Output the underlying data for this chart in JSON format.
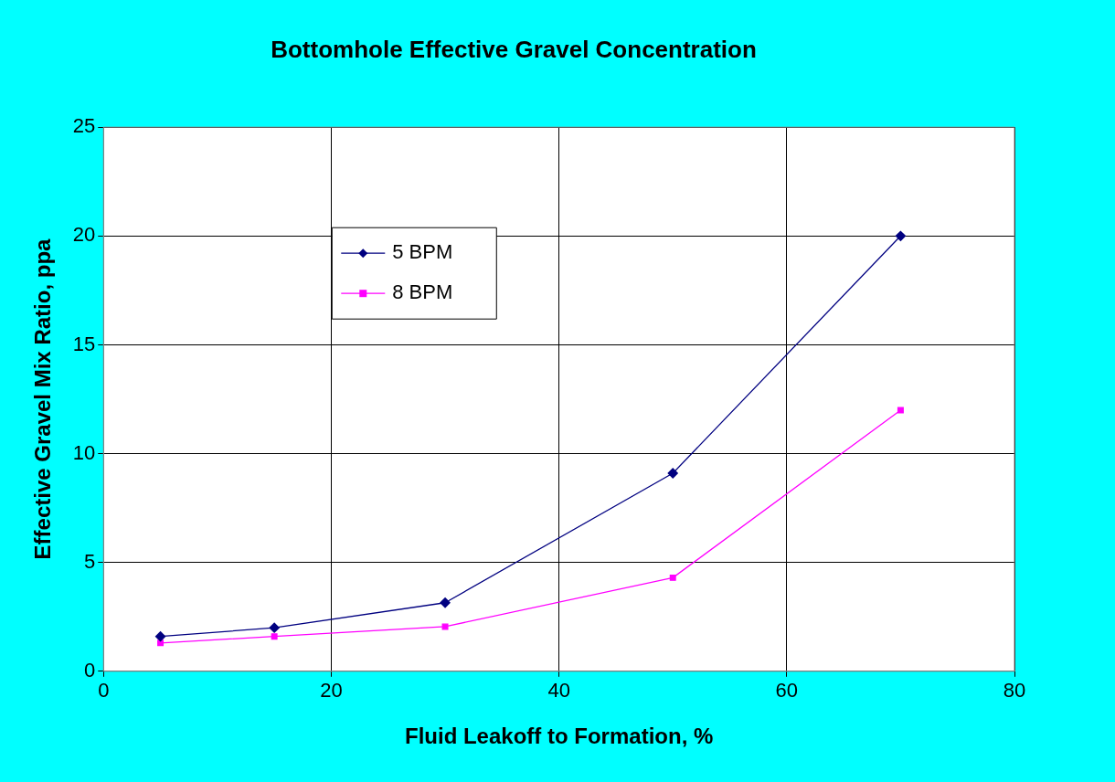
{
  "chart_data": {
    "type": "line",
    "title": "Bottomhole Effective Gravel Concentration",
    "xlabel": "Fluid Leakoff to Formation, %",
    "ylabel": "Effective Gravel Mix Ratio, ppa",
    "x": [
      5,
      15,
      30,
      50,
      70
    ],
    "series": [
      {
        "name": "5 BPM",
        "color": "#000080",
        "marker": "diamond",
        "values": [
          1.6,
          2.0,
          3.15,
          9.1,
          20.0
        ]
      },
      {
        "name": "8 BPM",
        "color": "#ff00ff",
        "marker": "square",
        "values": [
          1.3,
          1.6,
          2.05,
          4.3,
          12.0
        ]
      }
    ],
    "xlim": [
      0,
      80
    ],
    "xticks": [
      0,
      20,
      40,
      60,
      80
    ],
    "ylim": [
      0,
      25
    ],
    "yticks": [
      0,
      5,
      10,
      15,
      20,
      25
    ],
    "grid": true,
    "legend": "top left"
  }
}
